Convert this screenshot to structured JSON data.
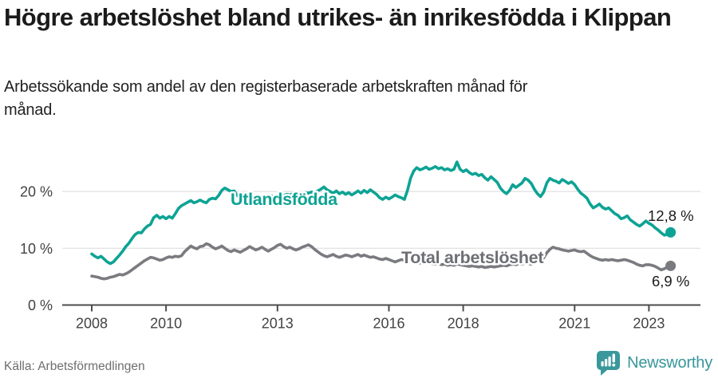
{
  "header": {
    "title": "Högre arbetslöshet bland utrikes- än inrikesfödda i Klippan",
    "subtitle": "Arbetssökande som andel av den registerbaserade arbetskraften månad för månad."
  },
  "footer": {
    "source": "Källa: Arbetsförmedlingen",
    "brand": "Newsworthy",
    "brand_color": "#37969b"
  },
  "chart_data": {
    "type": "line",
    "x_unit": "month",
    "x_start": "2008-01",
    "x_end": "2023-08",
    "x_ticks": [
      "2008",
      "2010",
      "2013",
      "2016",
      "2018",
      "2021",
      "2023"
    ],
    "y_ticks": [
      {
        "value": 0,
        "label": "0 %"
      },
      {
        "value": 10,
        "label": "10 %"
      },
      {
        "value": 20,
        "label": "20 %"
      }
    ],
    "ylim": [
      0,
      26
    ],
    "grid": true,
    "legend_position": "inline-labels",
    "series": [
      {
        "name": "Utlandsfödda",
        "color": "#0da394",
        "label_color": "#0da394",
        "end_label": "12,8 %",
        "end_value": 12.8,
        "values": [
          9.0,
          8.6,
          8.3,
          8.6,
          8.1,
          7.6,
          7.3,
          7.6,
          8.2,
          8.8,
          9.5,
          10.3,
          10.9,
          11.7,
          12.4,
          12.8,
          12.7,
          13.4,
          13.9,
          14.2,
          15.4,
          15.8,
          15.3,
          15.6,
          15.2,
          15.6,
          15.3,
          16.1,
          17.0,
          17.5,
          17.8,
          18.1,
          18.4,
          18.0,
          18.2,
          18.5,
          18.2,
          18.0,
          18.6,
          18.8,
          18.7,
          19.3,
          20.2,
          20.6,
          20.3,
          20.0,
          20.1,
          19.3,
          18.9,
          18.6,
          18.8,
          18.9,
          18.7,
          18.8,
          19.0,
          18.9,
          19.1,
          19.0,
          19.2,
          19.1,
          19.2,
          19.4,
          19.3,
          19.5,
          19.4,
          19.6,
          19.5,
          19.7,
          19.6,
          19.8,
          19.7,
          19.9,
          19.8,
          20.1,
          20.4,
          20.8,
          20.3,
          20.0,
          19.7,
          20.1,
          19.6,
          19.9,
          19.5,
          19.8,
          19.4,
          19.7,
          20.1,
          19.7,
          20.2,
          19.8,
          20.3,
          19.9,
          19.5,
          18.9,
          18.6,
          19.0,
          18.7,
          19.0,
          19.4,
          19.1,
          18.9,
          18.6,
          20.2,
          22.3,
          23.6,
          24.2,
          23.8,
          24.0,
          24.3,
          23.9,
          24.1,
          24.4,
          24.0,
          24.2,
          23.8,
          24.0,
          23.7,
          23.9,
          25.2,
          23.9,
          23.5,
          23.8,
          23.3,
          23.0,
          23.2,
          22.8,
          23.0,
          22.4,
          22.0,
          22.6,
          22.1,
          21.6,
          20.6,
          20.0,
          19.6,
          20.2,
          21.2,
          20.7,
          21.1,
          21.5,
          22.3,
          22.0,
          21.4,
          20.4,
          19.6,
          19.1,
          19.9,
          21.5,
          22.3,
          22.0,
          21.8,
          21.5,
          22.1,
          21.8,
          21.4,
          21.7,
          21.2,
          20.4,
          19.7,
          19.3,
          18.8,
          17.8,
          17.1,
          17.4,
          17.8,
          17.2,
          16.9,
          17.1,
          16.6,
          16.1,
          15.8,
          15.2,
          15.4,
          15.7,
          15.0,
          14.6,
          14.2,
          13.9,
          14.3,
          14.8,
          14.4,
          14.1,
          13.6,
          13.2,
          12.7,
          12.3,
          12.5,
          12.8
        ]
      },
      {
        "name": "Total arbetslöshet",
        "color": "#7a7b80",
        "label_color": "#6e6f74",
        "end_label": "6,9 %",
        "end_value": 6.9,
        "values": [
          5.1,
          5.0,
          4.9,
          4.7,
          4.6,
          4.7,
          4.9,
          5.0,
          5.2,
          5.4,
          5.3,
          5.5,
          5.8,
          6.2,
          6.6,
          7.0,
          7.4,
          7.8,
          8.1,
          8.4,
          8.3,
          8.1,
          7.9,
          8.0,
          8.3,
          8.5,
          8.4,
          8.6,
          8.5,
          8.7,
          9.4,
          9.9,
          10.4,
          10.1,
          9.9,
          10.3,
          10.4,
          10.8,
          10.6,
          10.2,
          9.9,
          10.1,
          10.4,
          10.0,
          9.6,
          9.4,
          9.7,
          9.5,
          9.3,
          9.6,
          9.9,
          10.3,
          10.0,
          9.7,
          9.9,
          10.2,
          9.8,
          9.5,
          9.8,
          10.1,
          10.5,
          10.7,
          10.3,
          10.0,
          10.2,
          9.9,
          9.7,
          9.9,
          10.2,
          10.4,
          10.6,
          10.3,
          9.8,
          9.4,
          9.0,
          8.7,
          8.5,
          8.7,
          8.9,
          8.6,
          8.4,
          8.6,
          8.8,
          8.7,
          8.5,
          8.7,
          8.9,
          8.6,
          8.8,
          8.6,
          8.4,
          8.5,
          8.3,
          8.1,
          8.0,
          8.2,
          8.0,
          7.8,
          7.6,
          7.8,
          8.0,
          7.9,
          7.7,
          7.8,
          7.6,
          7.5,
          7.4,
          7.5,
          7.4,
          7.5,
          7.3,
          7.2,
          7.3,
          7.1,
          7.2,
          7.0,
          7.1,
          7.0,
          7.2,
          7.1,
          7.0,
          6.9,
          6.8,
          6.9,
          6.8,
          6.7,
          6.8,
          6.6,
          6.7,
          6.8,
          6.7,
          6.8,
          6.9,
          7.0,
          6.9,
          7.1,
          7.2,
          7.1,
          7.3,
          7.2,
          7.4,
          7.3,
          7.2,
          7.4,
          7.6,
          7.8,
          8.3,
          9.2,
          9.8,
          10.2,
          10.0,
          9.9,
          9.7,
          9.6,
          9.5,
          9.6,
          9.7,
          9.5,
          9.4,
          9.5,
          9.1,
          8.7,
          8.4,
          8.2,
          8.0,
          7.9,
          8.0,
          7.9,
          8.0,
          7.9,
          7.8,
          7.9,
          8.0,
          7.9,
          7.7,
          7.5,
          7.2,
          7.0,
          6.9,
          7.1,
          7.1,
          7.0,
          6.8,
          6.5,
          6.2,
          6.4,
          6.7,
          6.9
        ]
      }
    ]
  }
}
